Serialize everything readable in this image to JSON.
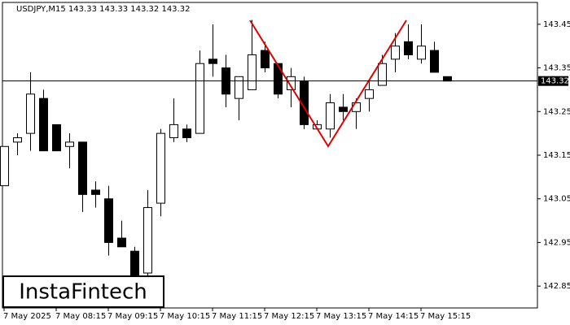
{
  "chart_data": {
    "type": "candlestick",
    "title": "USDJPY,M15  143.33 143.33 143.32 143.32",
    "watermark": "InstaFintech",
    "categories": [
      "7 May 2025",
      null,
      null,
      null,
      "7 May 08:15",
      null,
      null,
      null,
      "7 May 09:15",
      null,
      null,
      null,
      "7 May 10:15",
      null,
      null,
      null,
      "7 May 11:15",
      null,
      null,
      null,
      "7 May 12:15",
      null,
      null,
      null,
      "7 May 13:15",
      null,
      null,
      null,
      "7 May 14:15",
      null,
      null,
      null,
      "7 May 15:15",
      null,
      null
    ],
    "open": [
      143.08,
      143.18,
      143.2,
      143.28,
      143.22,
      143.17,
      143.18,
      143.07,
      143.05,
      142.96,
      142.93,
      142.88,
      143.04,
      143.19,
      143.21,
      143.2,
      143.37,
      143.35,
      143.28,
      143.3,
      143.39,
      143.36,
      143.3,
      143.32,
      143.21,
      143.21,
      143.26,
      143.25,
      143.28,
      143.31,
      143.37,
      143.41,
      143.37,
      143.39,
      143.33
    ],
    "high": [
      143.17,
      143.2,
      143.34,
      143.3,
      143.22,
      143.2,
      143.18,
      143.09,
      143.08,
      143.0,
      142.94,
      143.07,
      143.21,
      143.28,
      143.22,
      143.39,
      143.45,
      143.38,
      143.33,
      143.46,
      143.41,
      143.36,
      143.35,
      143.33,
      143.23,
      143.29,
      143.29,
      143.28,
      143.32,
      143.38,
      143.43,
      143.45,
      143.45,
      143.41,
      143.33
    ],
    "low": [
      143.08,
      143.15,
      143.16,
      143.16,
      143.16,
      143.12,
      143.02,
      143.03,
      142.92,
      142.94,
      142.85,
      142.87,
      143.01,
      143.18,
      143.18,
      143.2,
      143.33,
      143.26,
      143.23,
      143.3,
      143.34,
      143.28,
      143.26,
      143.21,
      143.21,
      143.19,
      143.23,
      143.21,
      143.25,
      143.31,
      143.34,
      143.37,
      143.36,
      143.34,
      143.32
    ],
    "close": [
      143.17,
      143.19,
      143.29,
      143.16,
      143.16,
      143.18,
      143.06,
      143.06,
      142.95,
      142.94,
      142.87,
      143.03,
      143.2,
      143.22,
      143.19,
      143.36,
      143.36,
      143.29,
      143.33,
      143.38,
      143.35,
      143.29,
      143.33,
      143.22,
      143.22,
      143.27,
      143.25,
      143.27,
      143.3,
      143.36,
      143.4,
      143.38,
      143.4,
      143.34,
      143.32
    ],
    "last_price": 143.32,
    "ylim": [
      142.8,
      143.5
    ],
    "yticks": [
      142.85,
      142.95,
      143.05,
      143.15,
      143.25,
      143.35,
      143.45
    ],
    "grid": false
  }
}
